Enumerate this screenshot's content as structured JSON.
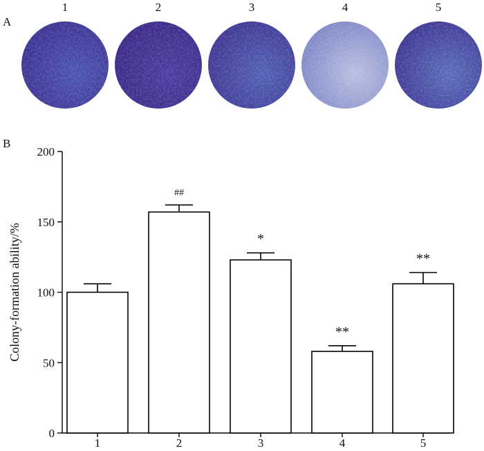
{
  "panel_a": {
    "label": "A",
    "wells": [
      {
        "label": "1",
        "color": "#3b2f8f",
        "highlight": "#4a54b0"
      },
      {
        "label": "2",
        "color": "#3a2786",
        "highlight": "#4a3c9e"
      },
      {
        "label": "3",
        "color": "#3d3391",
        "highlight": "#5060b6"
      },
      {
        "label": "4",
        "color": "#7a84c4",
        "highlight": "#b9c0e2"
      },
      {
        "label": "5",
        "color": "#3c3490",
        "highlight": "#5a6cbc"
      }
    ]
  },
  "panel_b": {
    "label": "B"
  },
  "chart_data": {
    "type": "bar",
    "categories": [
      "1",
      "2",
      "3",
      "4",
      "5"
    ],
    "values": [
      100,
      157,
      123,
      58,
      106
    ],
    "errors": [
      6,
      5,
      5,
      4,
      8
    ],
    "annotations": [
      "",
      "##",
      "*",
      "**",
      "**"
    ],
    "ylabel": "Colony-formation ability/%",
    "xlabel": "",
    "ylim": [
      0,
      200
    ],
    "yticks": [
      0,
      50,
      100,
      150,
      200
    ],
    "grid": false,
    "bar_fill": "#ffffff",
    "bar_stroke": "#000000"
  }
}
